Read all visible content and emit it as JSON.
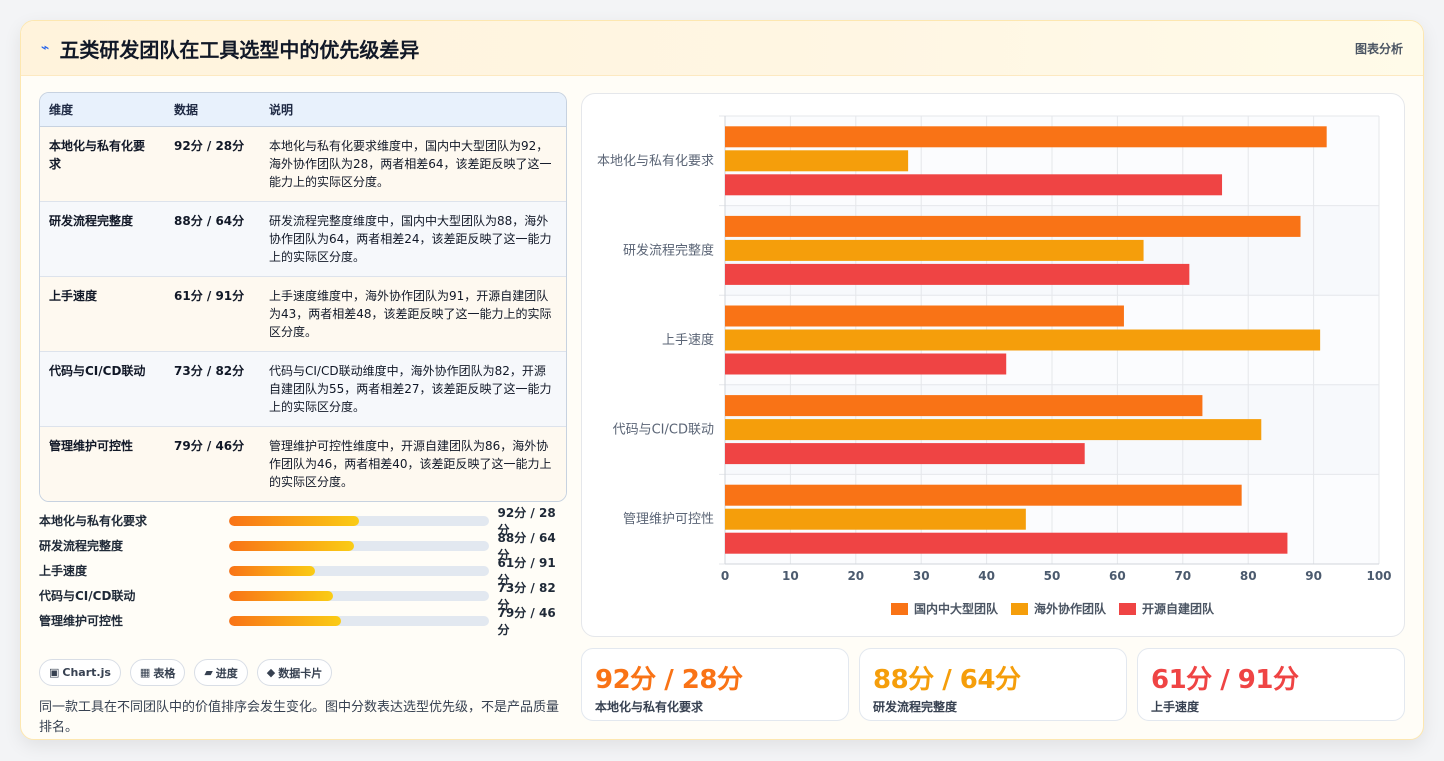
{
  "header": {
    "title": "五类研发团队在工具选型中的优先级差异",
    "link": "图表分析"
  },
  "table": {
    "headers": [
      "维度",
      "数据",
      "说明"
    ],
    "rows": [
      {
        "dim": "本地化与私有化要求",
        "score": "92分 / 28分",
        "desc": "本地化与私有化要求维度中，国内中大型团队为92，海外协作团队为28，两者相差64，该差距反映了这一能力上的实际区分度。"
      },
      {
        "dim": "研发流程完整度",
        "score": "88分 / 64分",
        "desc": "研发流程完整度维度中，国内中大型团队为88，海外协作团队为64，两者相差24，该差距反映了这一能力上的实际区分度。"
      },
      {
        "dim": "上手速度",
        "score": "61分 / 91分",
        "desc": "上手速度维度中，海外协作团队为91，开源自建团队为43，两者相差48，该差距反映了这一能力上的实际区分度。"
      },
      {
        "dim": "代码与CI/CD联动",
        "score": "73分 / 82分",
        "desc": "代码与CI/CD联动维度中，海外协作团队为82，开源自建团队为55，两者相差27，该差距反映了这一能力上的实际区分度。"
      },
      {
        "dim": "管理维护可控性",
        "score": "79分 / 46分",
        "desc": "管理维护可控性维度中，开源自建团队为86，海外协作团队为46，两者相差40，该差距反映了这一能力上的实际区分度。"
      }
    ]
  },
  "progress": [
    {
      "label": "本地化与私有化要求",
      "value": "92分 / 28分",
      "fill": 0.5
    },
    {
      "label": "研发流程完整度",
      "value": "88分 / 64分",
      "fill": 0.48
    },
    {
      "label": "上手速度",
      "value": "61分 / 91分",
      "fill": 0.33
    },
    {
      "label": "代码与CI/CD联动",
      "value": "73分 / 82分",
      "fill": 0.4
    },
    {
      "label": "管理维护可控性",
      "value": "79分 / 46分",
      "fill": 0.43
    }
  ],
  "pills": [
    {
      "icon": "▣",
      "label": "Chart.js"
    },
    {
      "icon": "▦",
      "label": "表格"
    },
    {
      "icon": "▰",
      "label": "进度"
    },
    {
      "icon": "◆",
      "label": "数据卡片"
    }
  ],
  "note": "同一款工具在不同团队中的价值排序会发生变化。图中分数表达选型优先级，不是产品质量排名。",
  "stats": [
    {
      "value": "92分 / 28分",
      "label": "本地化与私有化要求",
      "color": "#f97316"
    },
    {
      "value": "88分 / 64分",
      "label": "研发流程完整度",
      "color": "#f59e0b"
    },
    {
      "value": "61分 / 91分",
      "label": "上手速度",
      "color": "#ef4444"
    }
  ],
  "chart_data": {
    "type": "bar",
    "orientation": "horizontal",
    "categories": [
      "本地化与私有化要求",
      "研发流程完整度",
      "上手速度",
      "代码与CI/CD联动",
      "管理维护可控性"
    ],
    "series": [
      {
        "name": "国内中大型团队",
        "color": "#f97316",
        "values": [
          92,
          88,
          61,
          73,
          79
        ]
      },
      {
        "name": "海外协作团队",
        "color": "#f59e0b",
        "values": [
          28,
          64,
          91,
          82,
          46
        ]
      },
      {
        "name": "开源自建团队",
        "color": "#ef4444",
        "values": [
          76,
          71,
          43,
          55,
          86
        ]
      }
    ],
    "xlim": [
      0,
      100
    ],
    "xticks": [
      0,
      10,
      20,
      30,
      40,
      50,
      60,
      70,
      80,
      90,
      100
    ],
    "grid": true,
    "legend": "bottom"
  }
}
